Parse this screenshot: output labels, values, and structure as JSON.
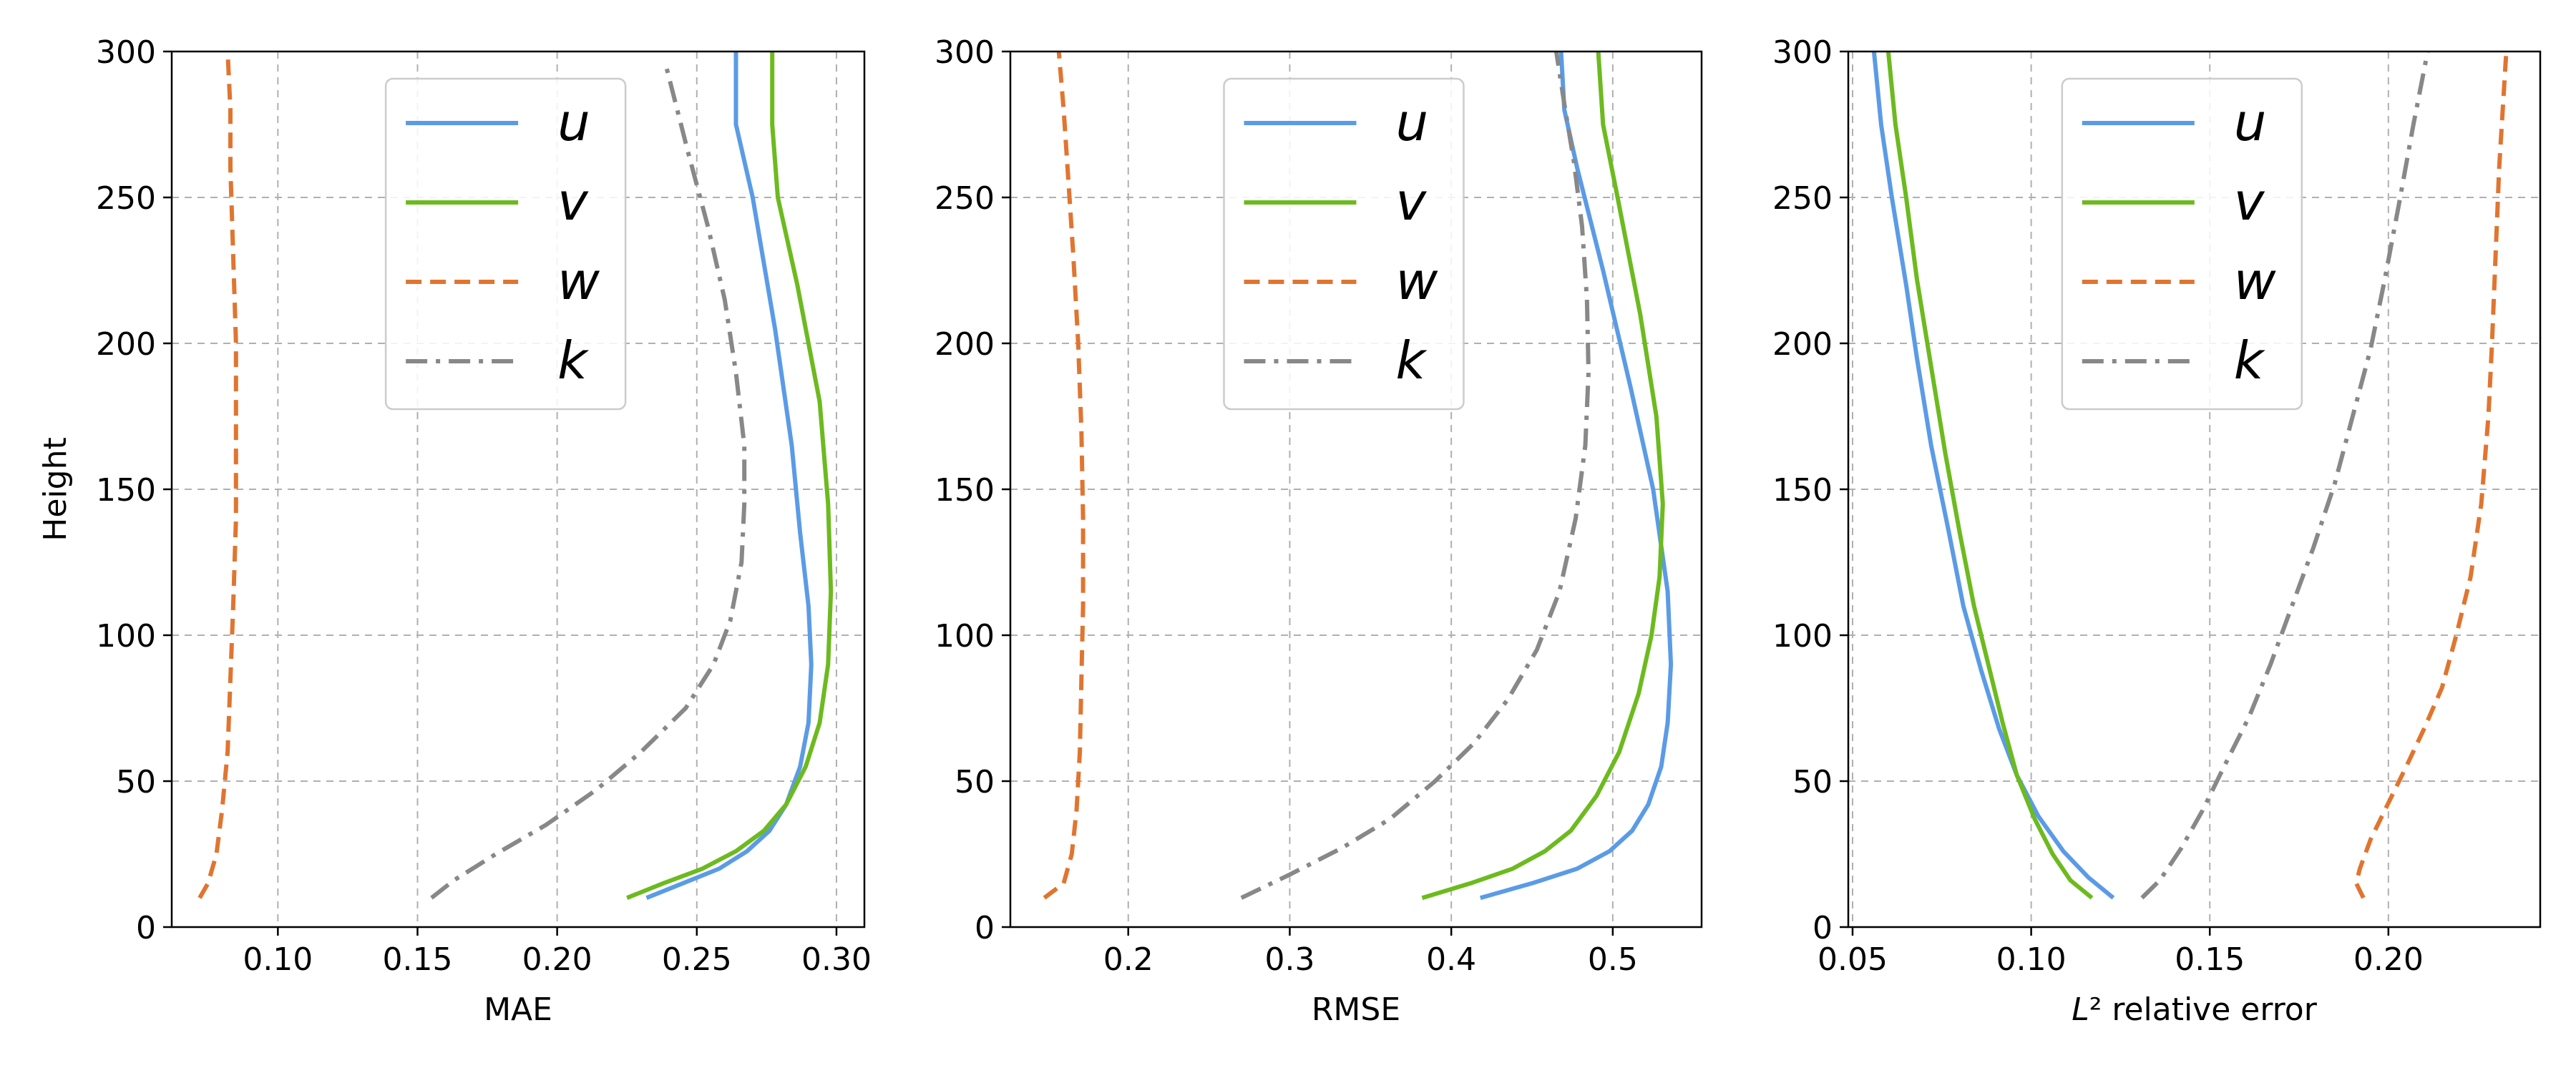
{
  "colors": {
    "u": "#5b9be6",
    "v": "#6dba1f",
    "w": "#e07530",
    "k": "#888888"
  },
  "series_styles": {
    "u": "solid",
    "v": "solid",
    "w": "dashed",
    "k": "dashdot"
  },
  "chart_data": [
    {
      "type": "line",
      "title": "",
      "xlabel": "MAE",
      "ylabel": "Height",
      "xlim": [
        0.062,
        0.31
      ],
      "ylim": [
        0,
        300
      ],
      "xticks": [
        0.1,
        0.15,
        0.2,
        0.25,
        0.3
      ],
      "xtick_labels": [
        "0.10",
        "0.15",
        "0.20",
        "0.25",
        "0.30"
      ],
      "yticks": [
        0,
        50,
        100,
        150,
        200,
        250,
        300
      ],
      "ytick_labels": [
        "0",
        "50",
        "100",
        "150",
        "200",
        "250",
        "300"
      ],
      "grid": true,
      "legend": [
        "u",
        "v",
        "w",
        "k"
      ],
      "legend_position": "upper-center",
      "series": [
        {
          "name": "u",
          "points": [
            [
              0.232,
              10
            ],
            [
              0.245,
              15
            ],
            [
              0.258,
              20
            ],
            [
              0.268,
              26
            ],
            [
              0.276,
              33
            ],
            [
              0.282,
              42
            ],
            [
              0.287,
              55
            ],
            [
              0.29,
              70
            ],
            [
              0.291,
              90
            ],
            [
              0.29,
              110
            ],
            [
              0.287,
              135
            ],
            [
              0.284,
              165
            ],
            [
              0.278,
              205
            ],
            [
              0.27,
              250
            ],
            [
              0.264,
              275
            ],
            [
              0.264,
              300
            ]
          ]
        },
        {
          "name": "v",
          "points": [
            [
              0.225,
              10
            ],
            [
              0.238,
              15
            ],
            [
              0.252,
              20
            ],
            [
              0.264,
              26
            ],
            [
              0.274,
              33
            ],
            [
              0.282,
              42
            ],
            [
              0.289,
              55
            ],
            [
              0.294,
              70
            ],
            [
              0.297,
              90
            ],
            [
              0.298,
              115
            ],
            [
              0.297,
              145
            ],
            [
              0.294,
              180
            ],
            [
              0.286,
              220
            ],
            [
              0.279,
              250
            ],
            [
              0.277,
              275
            ],
            [
              0.277,
              300
            ]
          ]
        },
        {
          "name": "w",
          "points": [
            [
              0.072,
              10
            ],
            [
              0.075,
              15
            ],
            [
              0.078,
              25
            ],
            [
              0.08,
              40
            ],
            [
              0.082,
              60
            ],
            [
              0.083,
              85
            ],
            [
              0.084,
              110
            ],
            [
              0.085,
              140
            ],
            [
              0.085,
              170
            ],
            [
              0.085,
              200
            ],
            [
              0.084,
              230
            ],
            [
              0.083,
              260
            ],
            [
              0.083,
              280
            ],
            [
              0.082,
              300
            ]
          ]
        },
        {
          "name": "k",
          "points": [
            [
              0.155,
              10
            ],
            [
              0.163,
              16
            ],
            [
              0.178,
              25
            ],
            [
              0.196,
              35
            ],
            [
              0.214,
              47
            ],
            [
              0.23,
              60
            ],
            [
              0.246,
              75
            ],
            [
              0.256,
              90
            ],
            [
              0.262,
              105
            ],
            [
              0.266,
              125
            ],
            [
              0.267,
              145
            ],
            [
              0.267,
              165
            ],
            [
              0.264,
              190
            ],
            [
              0.26,
              215
            ],
            [
              0.254,
              240
            ],
            [
              0.247,
              265
            ],
            [
              0.239,
              295
            ]
          ]
        }
      ]
    },
    {
      "type": "line",
      "title": "",
      "xlabel": "RMSE",
      "ylabel": "",
      "xlim": [
        0.127,
        0.555
      ],
      "ylim": [
        0,
        300
      ],
      "xticks": [
        0.2,
        0.3,
        0.4,
        0.5
      ],
      "xtick_labels": [
        "0.2",
        "0.3",
        "0.4",
        "0.5"
      ],
      "yticks": [
        0,
        50,
        100,
        150,
        200,
        250,
        300
      ],
      "ytick_labels": [
        "0",
        "50",
        "100",
        "150",
        "200",
        "250",
        "300"
      ],
      "grid": true,
      "legend": [
        "u",
        "v",
        "w",
        "k"
      ],
      "legend_position": "upper-center",
      "series": [
        {
          "name": "u",
          "points": [
            [
              0.418,
              10
            ],
            [
              0.45,
              15
            ],
            [
              0.478,
              20
            ],
            [
              0.498,
              26
            ],
            [
              0.512,
              33
            ],
            [
              0.522,
              42
            ],
            [
              0.53,
              55
            ],
            [
              0.534,
              70
            ],
            [
              0.536,
              90
            ],
            [
              0.534,
              115
            ],
            [
              0.525,
              150
            ],
            [
              0.511,
              185
            ],
            [
              0.494,
              225
            ],
            [
              0.478,
              260
            ],
            [
              0.47,
              280
            ],
            [
              0.468,
              300
            ]
          ]
        },
        {
          "name": "v",
          "points": [
            [
              0.382,
              10
            ],
            [
              0.412,
              15
            ],
            [
              0.438,
              20
            ],
            [
              0.458,
              26
            ],
            [
              0.474,
              33
            ],
            [
              0.49,
              45
            ],
            [
              0.504,
              60
            ],
            [
              0.516,
              80
            ],
            [
              0.524,
              100
            ],
            [
              0.529,
              120
            ],
            [
              0.531,
              145
            ],
            [
              0.527,
              175
            ],
            [
              0.517,
              210
            ],
            [
              0.503,
              250
            ],
            [
              0.494,
              275
            ],
            [
              0.491,
              300
            ]
          ]
        },
        {
          "name": "w",
          "points": [
            [
              0.148,
              10
            ],
            [
              0.16,
              15
            ],
            [
              0.165,
              25
            ],
            [
              0.168,
              40
            ],
            [
              0.17,
              60
            ],
            [
              0.171,
              85
            ],
            [
              0.172,
              110
            ],
            [
              0.172,
              140
            ],
            [
              0.171,
              170
            ],
            [
              0.169,
              200
            ],
            [
              0.166,
              230
            ],
            [
              0.163,
              255
            ],
            [
              0.16,
              280
            ],
            [
              0.157,
              300
            ]
          ]
        },
        {
          "name": "k",
          "points": [
            [
              0.27,
              10
            ],
            [
              0.3,
              18
            ],
            [
              0.332,
              27
            ],
            [
              0.362,
              37
            ],
            [
              0.39,
              50
            ],
            [
              0.414,
              63
            ],
            [
              0.435,
              78
            ],
            [
              0.453,
              95
            ],
            [
              0.467,
              115
            ],
            [
              0.477,
              140
            ],
            [
              0.483,
              165
            ],
            [
              0.485,
              190
            ],
            [
              0.484,
              215
            ],
            [
              0.481,
              240
            ],
            [
              0.476,
              262
            ],
            [
              0.47,
              282
            ],
            [
              0.465,
              300
            ]
          ]
        }
      ]
    },
    {
      "type": "line",
      "title": "",
      "xlabel": "L² relative error",
      "ylabel": "",
      "xlim": [
        0.0488,
        0.2425
      ],
      "ylim": [
        0,
        300
      ],
      "xticks": [
        0.05,
        0.1,
        0.15,
        0.2
      ],
      "xtick_labels": [
        "0.05",
        "0.10",
        "0.15",
        "0.20"
      ],
      "yticks": [
        0,
        50,
        100,
        150,
        200,
        250,
        300
      ],
      "ytick_labels": [
        "0",
        "50",
        "100",
        "150",
        "200",
        "250",
        "300"
      ],
      "grid": true,
      "legend": [
        "u",
        "v",
        "w",
        "k"
      ],
      "legend_position": "upper-center",
      "series": [
        {
          "name": "u",
          "points": [
            [
              0.123,
              10
            ],
            [
              0.116,
              17
            ],
            [
              0.109,
              26
            ],
            [
              0.102,
              38
            ],
            [
              0.096,
              52
            ],
            [
              0.091,
              68
            ],
            [
              0.086,
              88
            ],
            [
              0.081,
              110
            ],
            [
              0.077,
              135
            ],
            [
              0.072,
              165
            ],
            [
              0.068,
              195
            ],
            [
              0.065,
              220
            ],
            [
              0.061,
              250
            ],
            [
              0.058,
              275
            ],
            [
              0.056,
              300
            ]
          ]
        },
        {
          "name": "v",
          "points": [
            [
              0.117,
              10
            ],
            [
              0.111,
              16
            ],
            [
              0.106,
              25
            ],
            [
              0.101,
              37
            ],
            [
              0.096,
              52
            ],
            [
              0.092,
              70
            ],
            [
              0.088,
              90
            ],
            [
              0.084,
              110
            ],
            [
              0.08,
              135
            ],
            [
              0.076,
              162
            ],
            [
              0.072,
              192
            ],
            [
              0.068,
              222
            ],
            [
              0.065,
              250
            ],
            [
              0.062,
              275
            ],
            [
              0.06,
              300
            ]
          ]
        },
        {
          "name": "w",
          "points": [
            [
              0.193,
              10
            ],
            [
              0.191,
              15
            ],
            [
              0.192,
              20
            ],
            [
              0.195,
              30
            ],
            [
              0.199,
              40
            ],
            [
              0.205,
              55
            ],
            [
              0.21,
              68
            ],
            [
              0.215,
              82
            ],
            [
              0.219,
              100
            ],
            [
              0.223,
              120
            ],
            [
              0.226,
              145
            ],
            [
              0.228,
              175
            ],
            [
              0.229,
              200
            ],
            [
              0.23,
              230
            ],
            [
              0.231,
              260
            ],
            [
              0.233,
              300
            ]
          ]
        },
        {
          "name": "k",
          "points": [
            [
              0.131,
              10
            ],
            [
              0.136,
              16
            ],
            [
              0.142,
              27
            ],
            [
              0.148,
              40
            ],
            [
              0.154,
              55
            ],
            [
              0.161,
              72
            ],
            [
              0.167,
              90
            ],
            [
              0.173,
              110
            ],
            [
              0.179,
              130
            ],
            [
              0.185,
              152
            ],
            [
              0.19,
              175
            ],
            [
              0.195,
              198
            ],
            [
              0.199,
              222
            ],
            [
              0.203,
              248
            ],
            [
              0.207,
              275
            ],
            [
              0.211,
              300
            ]
          ]
        }
      ]
    }
  ]
}
